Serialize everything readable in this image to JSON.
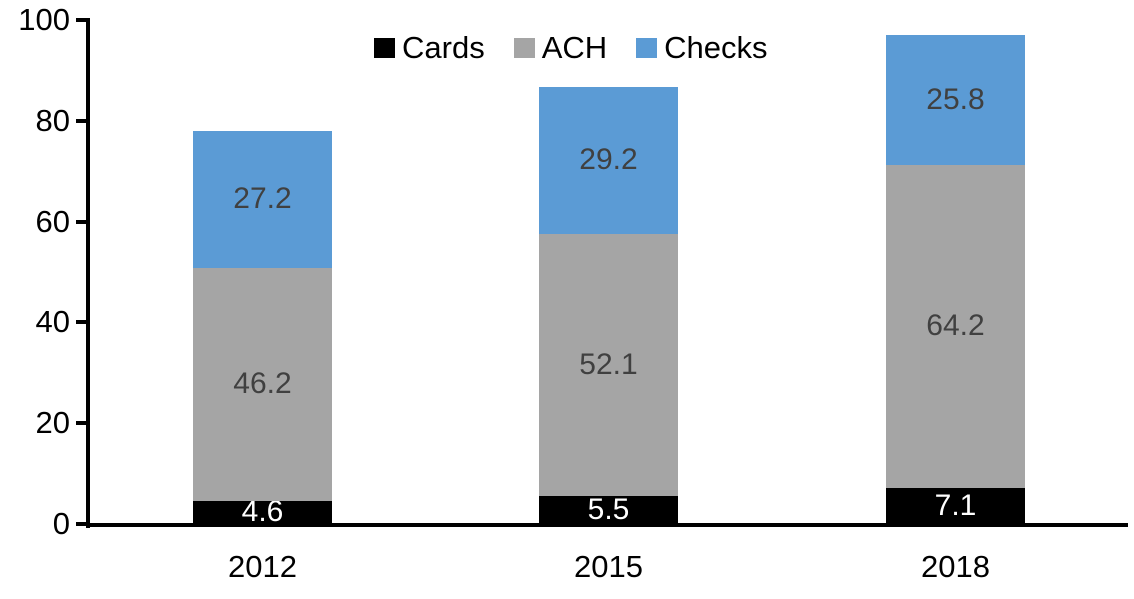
{
  "chart_data": {
    "type": "bar",
    "stacked": true,
    "title": "",
    "xlabel": "",
    "ylabel": "",
    "categories": [
      "2012",
      "2015",
      "2018"
    ],
    "series": [
      {
        "name": "Cards",
        "color": "#000000",
        "label_color": "#ffffff",
        "values": [
          4.6,
          5.5,
          7.1
        ]
      },
      {
        "name": "ACH",
        "color": "#a5a5a5",
        "label_color": "#404040",
        "values": [
          46.2,
          52.1,
          64.2
        ]
      },
      {
        "name": "Checks",
        "color": "#5b9bd5",
        "label_color": "#404040",
        "values": [
          27.2,
          29.2,
          25.8
        ]
      }
    ],
    "ylim": [
      0,
      100
    ],
    "yticks": [
      0,
      20,
      40,
      60,
      80,
      100
    ],
    "grid": false,
    "legend_position": "top",
    "axis_color": "#000000",
    "background_color": "#ffffff"
  }
}
